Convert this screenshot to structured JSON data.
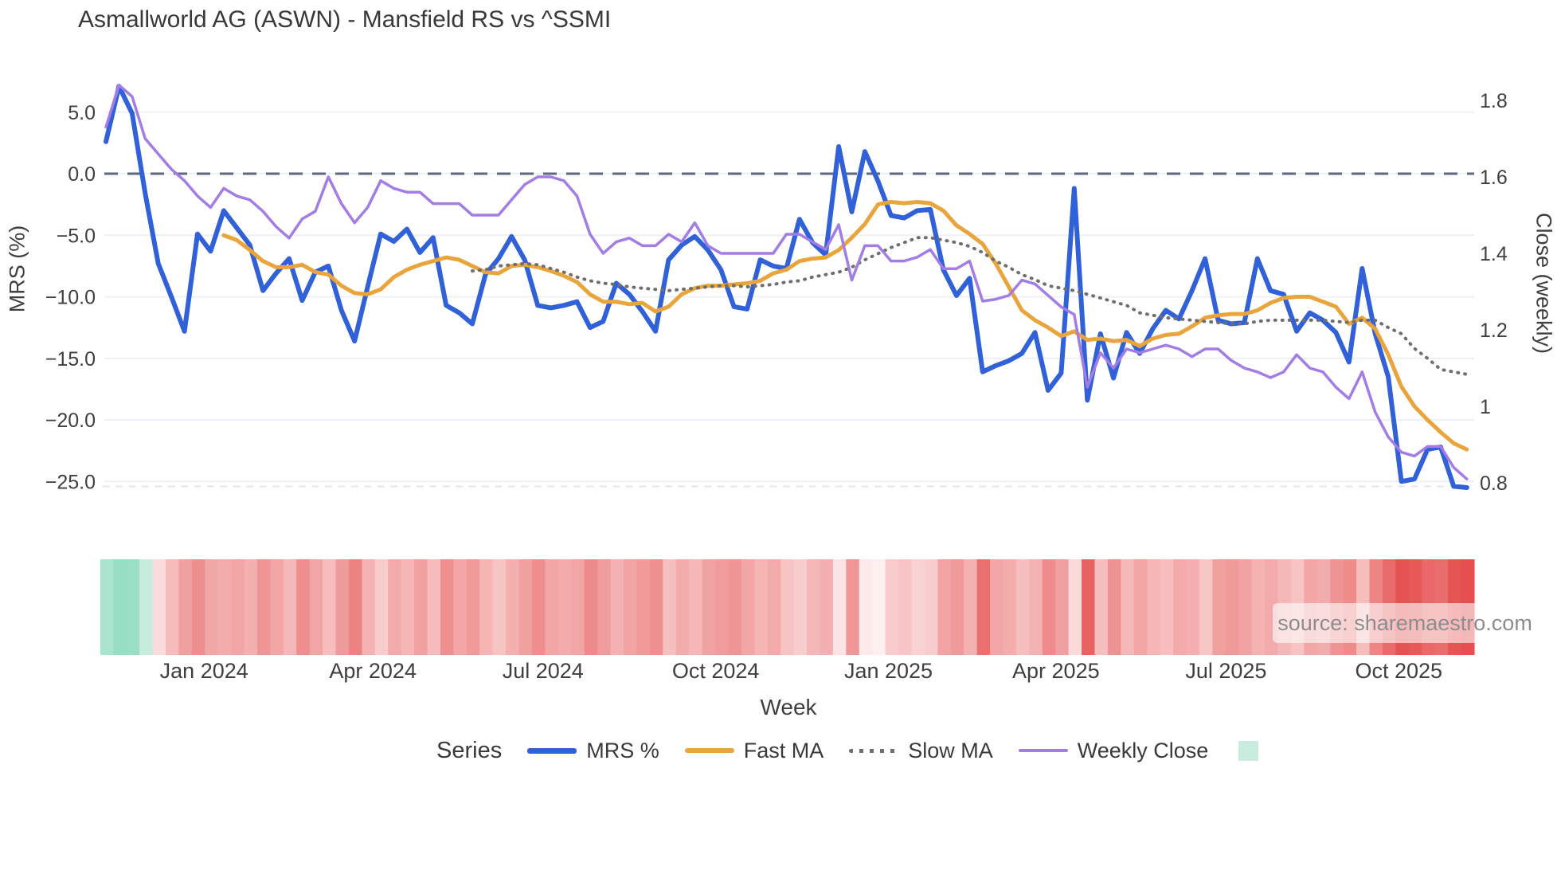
{
  "header": {
    "title": "Asmallworld AG (ASWN) - Mansfield RS vs ^SSMI"
  },
  "axes": {
    "left": {
      "title": "MRS (%)",
      "ticks": [
        {
          "label": "5.0",
          "value": 5
        },
        {
          "label": "0.0",
          "value": 0
        },
        {
          "label": "−5.0",
          "value": -5
        },
        {
          "label": "−10.0",
          "value": -10
        },
        {
          "label": "−15.0",
          "value": -15
        },
        {
          "label": "−20.0",
          "value": -20
        },
        {
          "label": "−25.0",
          "value": -25
        }
      ]
    },
    "right": {
      "title": "Close (weekly)",
      "ticks": [
        {
          "label": "1.8",
          "value": 1.8
        },
        {
          "label": "1.6",
          "value": 1.6
        },
        {
          "label": "1.4",
          "value": 1.4
        },
        {
          "label": "1.2",
          "value": 1.2
        },
        {
          "label": "1",
          "value": 1.0
        },
        {
          "label": "0.8",
          "value": 0.8
        }
      ]
    },
    "x": {
      "title": "Week",
      "ticks": [
        {
          "label": "Jan 2024",
          "week": 7.5
        },
        {
          "label": "Apr 2024",
          "week": 20.4
        },
        {
          "label": "Jul 2024",
          "week": 33.4
        },
        {
          "label": "Oct 2024",
          "week": 46.6
        },
        {
          "label": "Jan 2025",
          "week": 59.8
        },
        {
          "label": "Apr 2025",
          "week": 72.6
        },
        {
          "label": "Jul 2025",
          "week": 85.6
        },
        {
          "label": "Oct 2025",
          "week": 98.8
        }
      ]
    }
  },
  "legend": {
    "title": "Series",
    "items": [
      {
        "label": "MRS %",
        "color": "#3161d8",
        "style": "solid"
      },
      {
        "label": "Fast MA",
        "color": "#e9a43b",
        "style": "solid"
      },
      {
        "label": "Slow MA",
        "color": "#6f6f6f",
        "style": "dotted"
      },
      {
        "label": "Weekly Close",
        "color": "#a37de6",
        "style": "solid"
      }
    ],
    "extra_swatch_color": "#c9ecdf"
  },
  "source": {
    "text": "source: sharemaestro.com"
  },
  "chart_data": {
    "type": "line",
    "title": "Asmallworld AG (ASWN) - Mansfield RS vs ^SSMI",
    "xlabel": "Week",
    "ylabel_left": "MRS (%)",
    "ylabel_right": "Close (weekly)",
    "ylim_left": [
      -27,
      8
    ],
    "ylim_right": [
      0.75,
      1.9
    ],
    "weeks": 105,
    "zero_reference_line": 0,
    "grid": "horizontal",
    "legend_position": "bottom",
    "series": [
      {
        "name": "MRS %",
        "axis": "left",
        "color": "#3161d8",
        "style": "solid",
        "width": 6,
        "values": [
          2.6,
          7.1,
          4.9,
          -1.6,
          -7.3,
          -10.0,
          -12.8,
          -4.9,
          -6.3,
          -3.0,
          -4.4,
          -5.8,
          -9.5,
          -8.1,
          -6.9,
          -10.3,
          -8.0,
          -7.5,
          -11.1,
          -13.6,
          -9.2,
          -4.9,
          -5.5,
          -4.5,
          -6.4,
          -5.2,
          -10.7,
          -11.3,
          -12.2,
          -8.2,
          -6.9,
          -5.1,
          -7.0,
          -10.7,
          -10.9,
          -10.7,
          -10.4,
          -12.5,
          -12.0,
          -8.9,
          -9.8,
          -11.2,
          -12.8,
          -7.0,
          -5.8,
          -5.1,
          -6.2,
          -7.8,
          -10.8,
          -11.0,
          -7.0,
          -7.5,
          -7.7,
          -3.7,
          -5.6,
          -6.6,
          2.2,
          -3.1,
          1.8,
          -0.6,
          -3.4,
          -3.6,
          -3.0,
          -2.9,
          -7.8,
          -9.9,
          -8.5,
          -16.1,
          -15.6,
          -15.2,
          -14.6,
          -12.9,
          -17.6,
          -16.2,
          -1.2,
          -18.4,
          -13.0,
          -16.6,
          -12.9,
          -14.6,
          -12.6,
          -11.1,
          -11.8,
          -9.5,
          -6.9,
          -11.9,
          -12.2,
          -12.1,
          -6.9,
          -9.5,
          -9.8,
          -12.8,
          -11.3,
          -11.9,
          -12.9,
          -15.3,
          -7.7,
          -13.0,
          -16.5,
          -25.0,
          -24.8,
          -22.4,
          -22.2,
          -25.4,
          -25.5
        ]
      },
      {
        "name": "Fast MA",
        "axis": "left",
        "color": "#e9a43b",
        "style": "solid",
        "width": 5,
        "values": [
          null,
          null,
          null,
          null,
          null,
          null,
          null,
          null,
          null,
          -5.0,
          -5.4,
          -6.2,
          -7.1,
          -7.6,
          -7.6,
          -7.4,
          -8.0,
          -8.2,
          -9.1,
          -9.7,
          -9.8,
          -9.4,
          -8.4,
          -7.8,
          -7.4,
          -7.1,
          -6.8,
          -7.0,
          -7.5,
          -8.0,
          -8.1,
          -7.5,
          -7.4,
          -7.6,
          -7.9,
          -8.3,
          -8.8,
          -9.8,
          -10.4,
          -10.4,
          -10.6,
          -10.5,
          -11.2,
          -10.8,
          -9.8,
          -9.3,
          -9.1,
          -9.1,
          -9.0,
          -8.9,
          -8.7,
          -8.1,
          -7.8,
          -7.1,
          -6.9,
          -6.8,
          -6.2,
          -5.2,
          -4.1,
          -2.5,
          -2.3,
          -2.4,
          -2.3,
          -2.4,
          -3.0,
          -4.2,
          -4.9,
          -5.7,
          -7.3,
          -9.2,
          -11.1,
          -11.9,
          -12.5,
          -13.2,
          -12.8,
          -13.5,
          -13.4,
          -13.6,
          -13.5,
          -14.0,
          -13.4,
          -13.1,
          -13.0,
          -12.4,
          -11.7,
          -11.5,
          -11.4,
          -11.4,
          -11.1,
          -10.5,
          -10.1,
          -10.0,
          -10.0,
          -10.4,
          -10.8,
          -12.2,
          -11.7,
          -12.6,
          -14.7,
          -17.3,
          -18.9,
          -20.0,
          -21.0,
          -21.9,
          -22.4
        ]
      },
      {
        "name": "Slow MA",
        "axis": "left",
        "color": "#6f6f6f",
        "style": "dotted",
        "width": 4,
        "values": [
          null,
          null,
          null,
          null,
          null,
          null,
          null,
          null,
          null,
          null,
          null,
          null,
          null,
          null,
          null,
          null,
          null,
          null,
          null,
          null,
          null,
          null,
          null,
          null,
          null,
          null,
          null,
          null,
          -7.9,
          -7.8,
          -7.5,
          -7.4,
          -7.3,
          -7.4,
          -7.7,
          -8.0,
          -8.4,
          -8.7,
          -8.9,
          -9.0,
          -9.2,
          -9.3,
          -9.4,
          -9.5,
          -9.4,
          -9.3,
          -9.2,
          -9.1,
          -9.1,
          -9.2,
          -9.1,
          -9.0,
          -8.8,
          -8.7,
          -8.4,
          -8.2,
          -8.0,
          -7.6,
          -7.0,
          -6.5,
          -6.0,
          -5.6,
          -5.2,
          -5.2,
          -5.4,
          -5.6,
          -5.9,
          -6.4,
          -7.1,
          -7.6,
          -8.2,
          -8.6,
          -9.1,
          -9.3,
          -9.5,
          -9.8,
          -10.1,
          -10.4,
          -10.7,
          -11.3,
          -11.5,
          -11.7,
          -11.8,
          -11.9,
          -12.0,
          -12.1,
          -12.2,
          -12.2,
          -12.0,
          -11.9,
          -11.9,
          -11.9,
          -11.9,
          -11.9,
          -12.0,
          -12.1,
          -11.9,
          -11.9,
          -12.5,
          -13.0,
          -14.2,
          -15.0,
          -15.9,
          -16.1,
          -16.3
        ]
      },
      {
        "name": "Weekly Close",
        "axis": "right",
        "color": "#a37de6",
        "style": "solid",
        "width": 3.5,
        "values": [
          1.73,
          1.84,
          1.81,
          1.7,
          1.66,
          1.62,
          1.59,
          1.55,
          1.52,
          1.57,
          1.55,
          1.54,
          1.51,
          1.47,
          1.44,
          1.49,
          1.51,
          1.6,
          1.53,
          1.48,
          1.52,
          1.59,
          1.57,
          1.56,
          1.56,
          1.53,
          1.53,
          1.53,
          1.5,
          1.5,
          1.5,
          1.54,
          1.58,
          1.6,
          1.6,
          1.59,
          1.55,
          1.45,
          1.4,
          1.43,
          1.44,
          1.42,
          1.42,
          1.45,
          1.43,
          1.48,
          1.42,
          1.4,
          1.4,
          1.4,
          1.4,
          1.4,
          1.45,
          1.45,
          1.43,
          1.41,
          1.475,
          1.33,
          1.42,
          1.42,
          1.38,
          1.38,
          1.39,
          1.41,
          1.36,
          1.36,
          1.38,
          1.275,
          1.28,
          1.29,
          1.33,
          1.32,
          1.29,
          1.26,
          1.24,
          1.05,
          1.14,
          1.1,
          1.15,
          1.14,
          1.15,
          1.16,
          1.15,
          1.13,
          1.15,
          1.15,
          1.12,
          1.1,
          1.09,
          1.075,
          1.09,
          1.135,
          1.1,
          1.09,
          1.05,
          1.02,
          1.09,
          0.985,
          0.92,
          0.88,
          0.87,
          0.895,
          0.895,
          0.84,
          0.81
        ]
      }
    ],
    "heatmap": {
      "description": "weekly performance strip below chart, one cell per week",
      "colors": [
        "#abe4cd",
        "#97dfc3",
        "#9adfc4",
        "#c6eddb",
        "#fadcdc",
        "#f6bbbb",
        "#f1a0a0",
        "#ee8f8f",
        "#f2a7a7",
        "#f3acac",
        "#f2a5a5",
        "#f4b0b0",
        "#ef9595",
        "#f2a5a5",
        "#f5b8b8",
        "#ee8e8e",
        "#f2a5a5",
        "#f6bdbd",
        "#f09b9b",
        "#ec8383",
        "#f4b2b2",
        "#f8cccc",
        "#f3aaaa",
        "#f5b6b6",
        "#f1a1a1",
        "#f6bcbc",
        "#ee9090",
        "#f2a6a6",
        "#f09a9a",
        "#f5b5b5",
        "#f7c4c4",
        "#f4afaf",
        "#f1a0a0",
        "#ee8e8e",
        "#f2a6a6",
        "#f3abab",
        "#f2a5a5",
        "#ed8a8a",
        "#f09c9c",
        "#f4b1b1",
        "#f2a4a4",
        "#f09a9a",
        "#ee9090",
        "#f6bfbf",
        "#f3acac",
        "#f5b7b7",
        "#f1a2a2",
        "#f09c9c",
        "#ef9595",
        "#f2a6a6",
        "#f5b5b5",
        "#f3aaaa",
        "#f7c2c2",
        "#f8cdcd",
        "#f5b8b8",
        "#f4b0b0",
        "#fbe4e4",
        "#ef9797",
        "#fce9e9",
        "#fdefef",
        "#f8cccc",
        "#f7c5c5",
        "#f9d3d3",
        "#f8cdcd",
        "#f2a4a4",
        "#f09b9b",
        "#f4b1b1",
        "#ea6f6f",
        "#f2a6a6",
        "#f3adad",
        "#f6bebe",
        "#f4b3b3",
        "#ee8c8c",
        "#f1a0a0",
        "#fadada",
        "#e86262",
        "#f6bfbf",
        "#ef9292",
        "#f5b8b8",
        "#f2a5a5",
        "#f5b6b6",
        "#f6bebe",
        "#f3aaaa",
        "#f4b0b0",
        "#f7c6c6",
        "#f1a0a0",
        "#f09a9a",
        "#f1a2a2",
        "#f4b2b2",
        "#f3aaaa",
        "#f5b8b8",
        "#f7c3c3",
        "#f2a6a6",
        "#f3acac",
        "#ef9494",
        "#ee8b8b",
        "#f6bdbd",
        "#ed8585",
        "#e96a6a",
        "#e65252",
        "#e75858",
        "#ea6868",
        "#ea6c6c",
        "#e65454",
        "#e64f4f"
      ]
    },
    "colors": {
      "grid": "#edf1f5",
      "zero_line": "#5f6878",
      "tick_text": "#3f3f3f"
    }
  }
}
